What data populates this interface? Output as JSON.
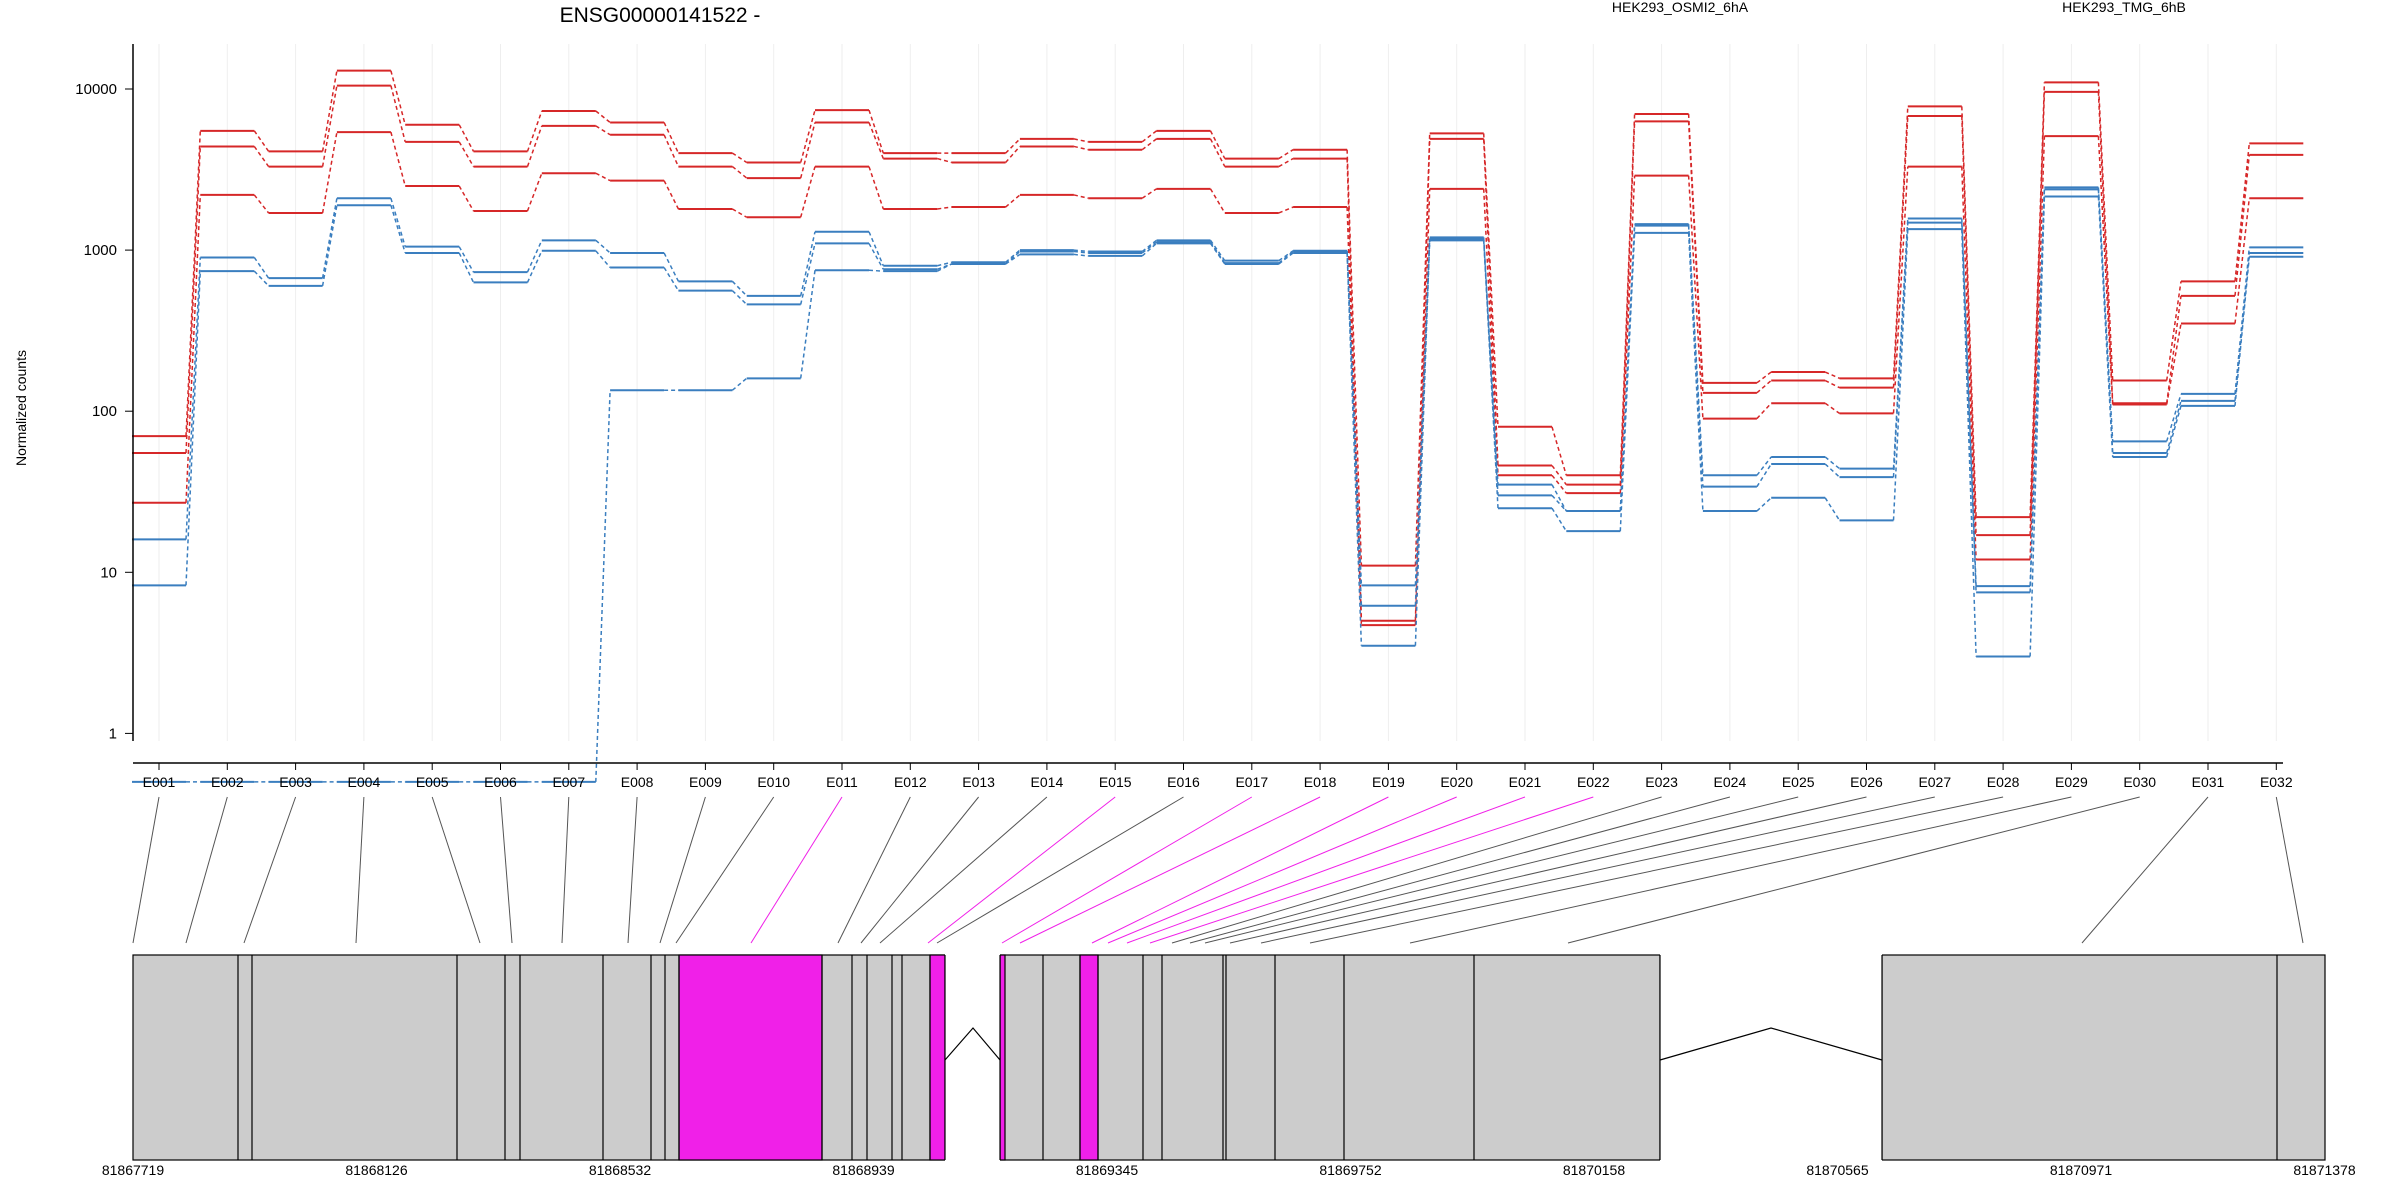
{
  "chart_data": {
    "type": "line",
    "title": "ENSG00000141522 -",
    "ylabel": "Normalized counts",
    "yscale": "log",
    "ylim": [
      0.5,
      20000
    ],
    "yticks": [
      1,
      10,
      100,
      1000,
      10000
    ],
    "yticklabels": [
      "1",
      "10",
      "100",
      "1000",
      "10000"
    ],
    "categories": [
      "E001",
      "E002",
      "E003",
      "E004",
      "E005",
      "E006",
      "E007",
      "E008",
      "E009",
      "E010",
      "E011",
      "E012",
      "E013",
      "E014",
      "E015",
      "E016",
      "E017",
      "E018",
      "E019",
      "E020",
      "E021",
      "E022",
      "E023",
      "E024",
      "E025",
      "E026",
      "E027",
      "E028",
      "E029",
      "E030",
      "E031",
      "E032"
    ],
    "conditions": [
      {
        "name": "HEK293_OSMI2_6hA",
        "color": "#d62728"
      },
      {
        "name": "HEK293_TMG_6hB",
        "color": "#3a7ebf"
      }
    ],
    "series": [
      {
        "condition": "HEK293_OSMI2_6hA",
        "values": [
          70,
          5500,
          4100,
          13000,
          6000,
          4100,
          7300,
          6200,
          4000,
          3500,
          7400,
          4000,
          4000,
          4900,
          4700,
          5500,
          3700,
          4200,
          11,
          5300,
          80,
          40,
          7000,
          150,
          175,
          160,
          7800,
          22,
          11000,
          155,
          640,
          4600
        ]
      },
      {
        "condition": "HEK293_OSMI2_6hA",
        "values": [
          55,
          4400,
          3300,
          10500,
          4700,
          3300,
          5900,
          5200,
          3300,
          2800,
          6200,
          3700,
          3500,
          4400,
          4200,
          4900,
          3300,
          3700,
          5,
          4900,
          46,
          35,
          6300,
          130,
          155,
          140,
          6800,
          17,
          9600,
          112,
          520,
          3900
        ]
      },
      {
        "condition": "HEK293_OSMI2_6hA",
        "values": [
          27,
          2200,
          1700,
          5400,
          2500,
          1750,
          3000,
          2700,
          1800,
          1600,
          3300,
          1800,
          1850,
          2200,
          2100,
          2400,
          1700,
          1850,
          4.7,
          2400,
          40,
          31,
          2900,
          90,
          112,
          97,
          3300,
          12,
          5100,
          110,
          350,
          2100
        ]
      },
      {
        "condition": "HEK293_TMG_6hB",
        "values": [
          16,
          900,
          670,
          2100,
          1050,
          730,
          1150,
          960,
          640,
          520,
          1300,
          800,
          840,
          1000,
          980,
          1150,
          860,
          990,
          8.3,
          1200,
          35,
          24,
          1450,
          40,
          52,
          44,
          1570,
          8.2,
          2450,
          65,
          128,
          1040
        ]
      },
      {
        "condition": "HEK293_TMG_6hB",
        "values": [
          8.3,
          740,
          600,
          1900,
          960,
          630,
          990,
          780,
          560,
          460,
          1100,
          760,
          820,
          980,
          960,
          1120,
          830,
          980,
          6.2,
          1150,
          30,
          24,
          1420,
          34,
          47,
          39,
          1480,
          7.5,
          2380,
          55,
          116,
          960
        ]
      },
      {
        "condition": "HEK293_TMG_6hB",
        "values": [
          0.5,
          0.5,
          0.5,
          0.5,
          0.5,
          0.5,
          0.5,
          135,
          135,
          160,
          750,
          740,
          820,
          940,
          920,
          1100,
          820,
          960,
          3.5,
          1180,
          25,
          18,
          1280,
          24,
          29,
          21,
          1350,
          3,
          2150,
          52,
          108,
          910
        ]
      }
    ],
    "gene_model": {
      "highlight_color": "#f020e8",
      "exon_color": "#cccccc",
      "genomic_ticks": [
        "81867719",
        "81868126",
        "81868532",
        "81868939",
        "81869345",
        "81869752",
        "81870158",
        "81870565",
        "81870971",
        "81871378"
      ]
    }
  }
}
